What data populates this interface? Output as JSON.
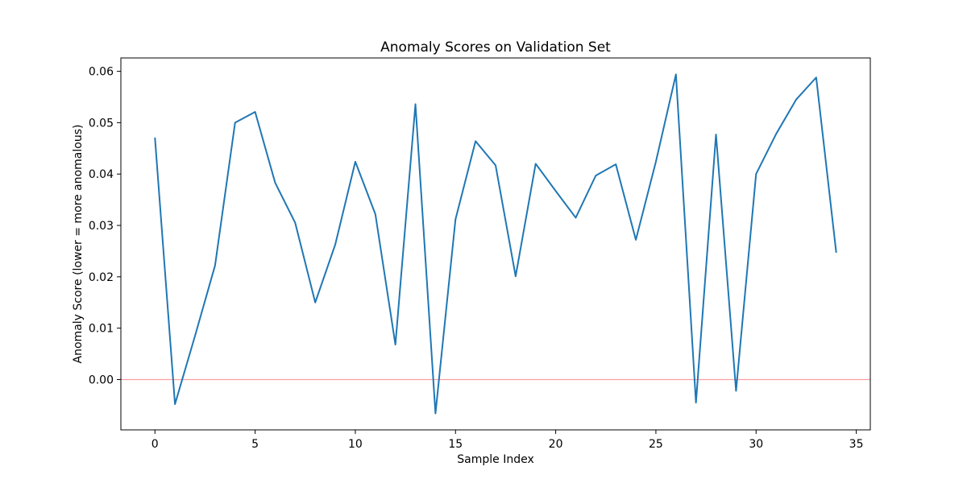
{
  "chart_data": {
    "type": "line",
    "title": "Anomaly Scores on Validation Set",
    "xlabel": "Sample Index",
    "ylabel": "Anomaly Score (lower = more anomalous)",
    "xlim": [
      -1.7,
      35.7
    ],
    "ylim": [
      -0.0098,
      0.0626
    ],
    "xticks": [
      0,
      5,
      10,
      15,
      20,
      25,
      30,
      35
    ],
    "xtick_labels": [
      "0",
      "5",
      "10",
      "15",
      "20",
      "25",
      "30",
      "35"
    ],
    "yticks": [
      0.0,
      0.01,
      0.02,
      0.03,
      0.04,
      0.05,
      0.06
    ],
    "ytick_labels": [
      "0.00",
      "0.01",
      "0.02",
      "0.03",
      "0.04",
      "0.05",
      "0.06"
    ],
    "grid": false,
    "legend": "none",
    "series": [
      {
        "color": "#1f77b4",
        "x": [
          0,
          1,
          2,
          3,
          4,
          5,
          6,
          7,
          8,
          9,
          10,
          11,
          12,
          13,
          14,
          15,
          16,
          17,
          18,
          19,
          20,
          21,
          22,
          23,
          24,
          25,
          26,
          27,
          28,
          29,
          30,
          31,
          32,
          33,
          34
        ],
        "values": [
          0.0471,
          -0.0048,
          0.0085,
          0.0222,
          0.05,
          0.0521,
          0.0383,
          0.0305,
          0.015,
          0.0263,
          0.0424,
          0.0322,
          0.0068,
          0.0536,
          -0.0066,
          0.0312,
          0.0464,
          0.0417,
          0.0201,
          0.042,
          0.0367,
          0.0315,
          0.0397,
          0.0419,
          0.0272,
          0.0424,
          0.0594,
          -0.0045,
          0.0477,
          -0.0022,
          0.04,
          0.0478,
          0.0545,
          0.0588,
          0.0247
        ]
      }
    ],
    "reference_line": {
      "y": 0.0,
      "color": "#ff9e9e"
    }
  }
}
